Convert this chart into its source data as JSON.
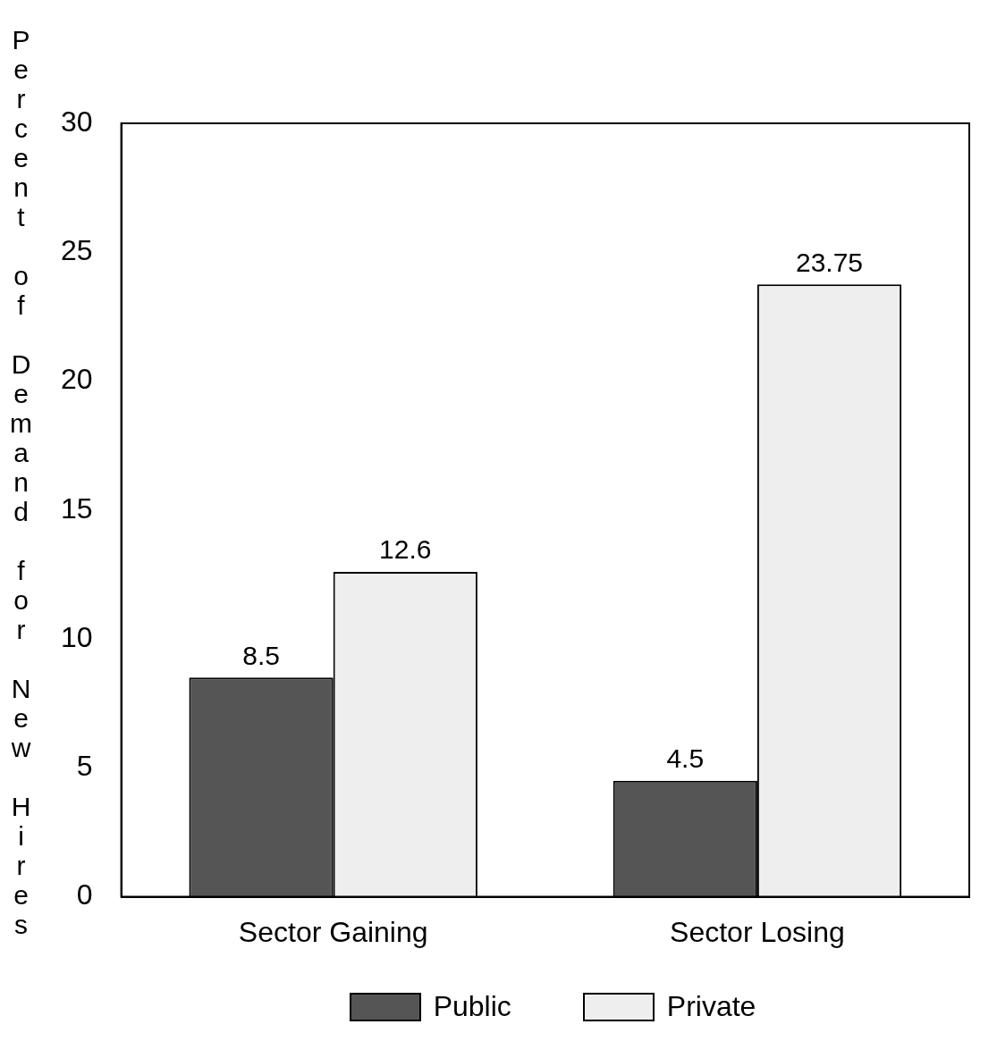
{
  "chart_data": {
    "type": "bar",
    "ylabel": "Percent of Demand for New Hires",
    "categories": [
      "Sector Gaining",
      "Sector Losing"
    ],
    "series": [
      {
        "name": "Public",
        "color": "#555555",
        "values": [
          8.5,
          4.5
        ]
      },
      {
        "name": "Private",
        "color": "#eeeeee",
        "values": [
          12.6,
          23.75
        ]
      }
    ],
    "ylim": [
      0,
      30
    ],
    "yticks": [
      0,
      5,
      10,
      15,
      20,
      25,
      30
    ],
    "grid": false,
    "legend": "bottom",
    "data_labels": true
  }
}
